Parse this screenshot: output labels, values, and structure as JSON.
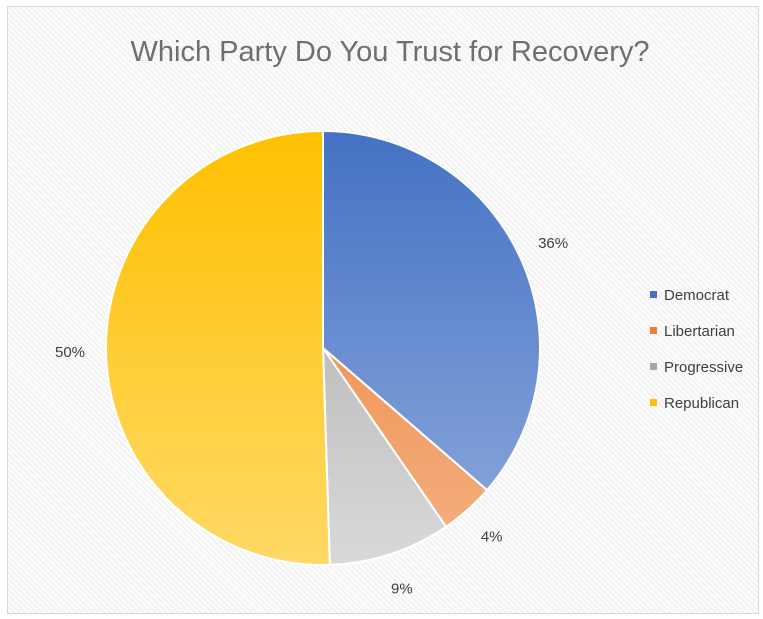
{
  "chart_data": {
    "type": "pie",
    "title": "Which Party Do You Trust for Recovery?",
    "legend_position": "right",
    "slices": [
      {
        "name": "Democrat",
        "value": 36,
        "label": "36%",
        "color": "#4472C4",
        "color_light": "#8FAADC"
      },
      {
        "name": "Libertarian",
        "value": 4,
        "label": "4%",
        "color": "#ED7D31",
        "color_light": "#F4B183"
      },
      {
        "name": "Progressive",
        "value": 9,
        "label": "9%",
        "color": "#A5A5A5",
        "color_light": "#D9D9D9"
      },
      {
        "name": "Republican",
        "value": 50,
        "label": "50%",
        "color": "#FFC000",
        "color_light": "#FFD966"
      }
    ]
  }
}
